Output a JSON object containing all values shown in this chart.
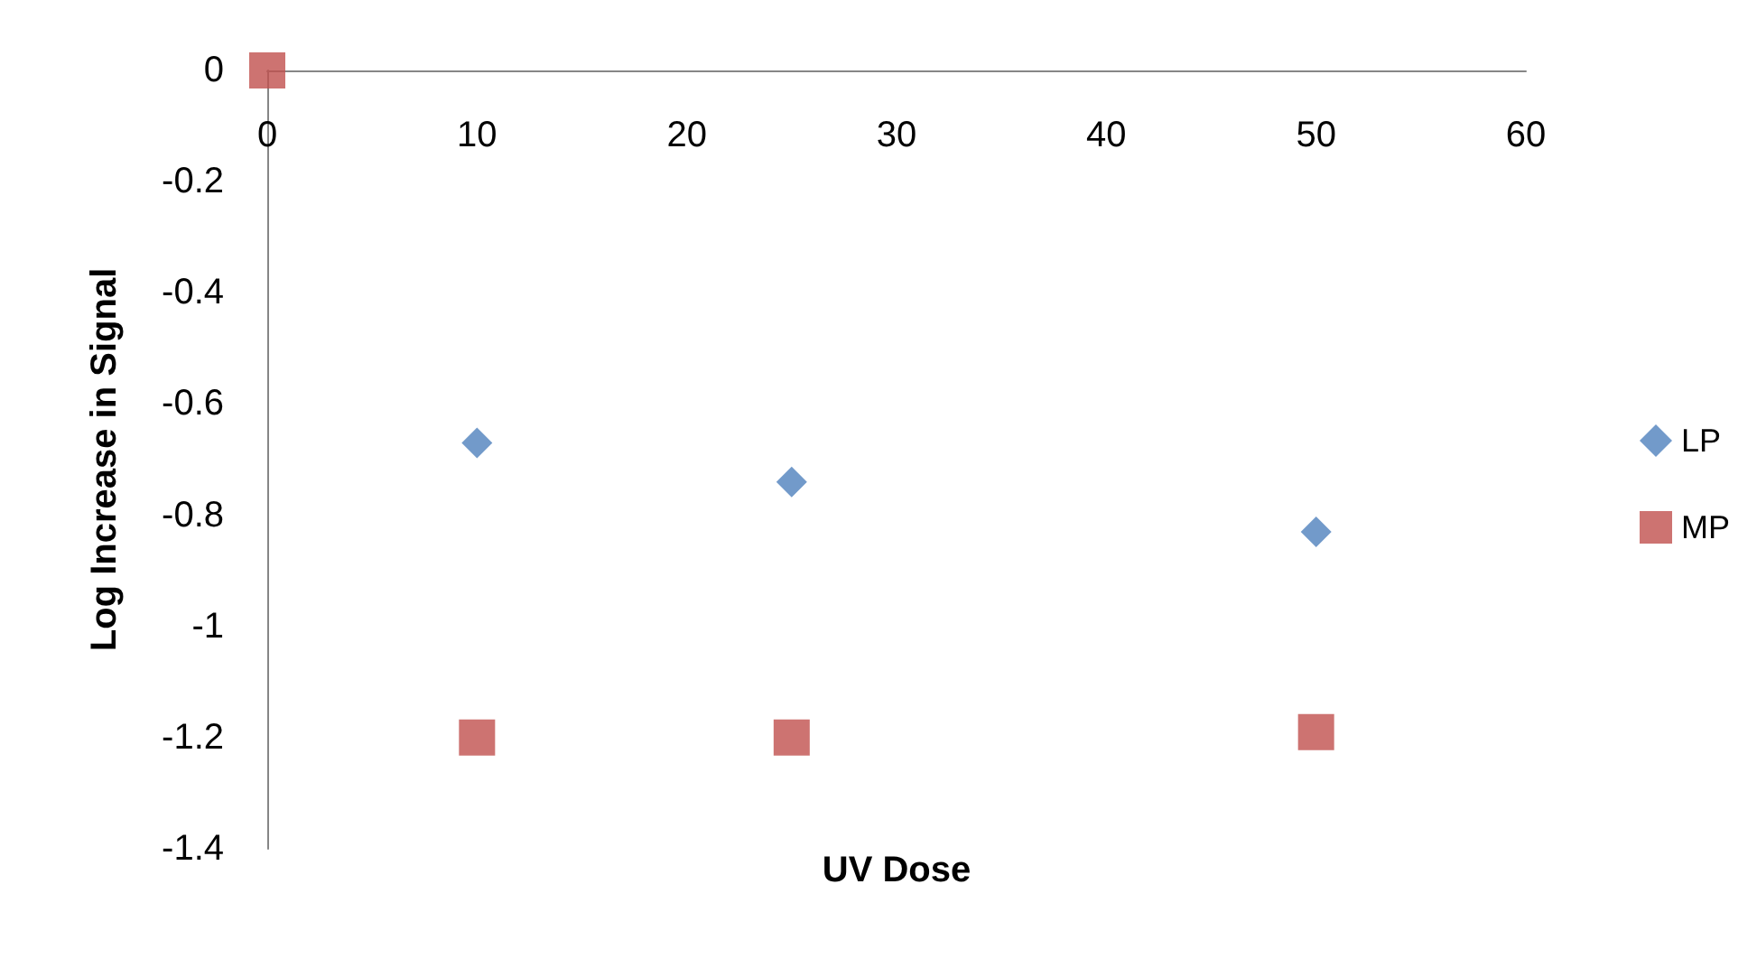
{
  "chart_data": {
    "type": "scatter",
    "xlabel": "UV Dose",
    "ylabel": "Log Increase in Signal",
    "xlim": [
      0,
      60
    ],
    "xticks": [
      0,
      10,
      20,
      30,
      40,
      50,
      60
    ],
    "ylim": [
      -1.4,
      0
    ],
    "yticks": [
      -1.4,
      -1.2,
      -1,
      -0.8,
      -0.6,
      -0.4,
      -0.2,
      0
    ],
    "grid": false,
    "legend": "right",
    "series": [
      {
        "name": "LP",
        "color": "#4f81bd",
        "marker": "diamond",
        "x": [
          10,
          25,
          50
        ],
        "values": [
          -0.67,
          -0.74,
          -0.83
        ]
      },
      {
        "name": "MP",
        "color": "#c0504d",
        "marker": "square",
        "x": [
          0,
          10,
          25,
          50
        ],
        "values": [
          0,
          -1.2,
          -1.2,
          -1.19
        ]
      }
    ]
  }
}
